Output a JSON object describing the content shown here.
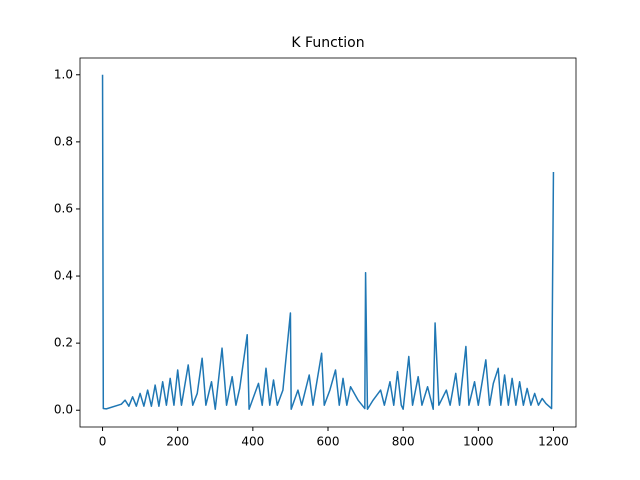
{
  "chart_data": {
    "type": "line",
    "title": "K Function",
    "x": [
      0,
      2,
      10,
      50,
      60,
      70,
      80,
      90,
      100,
      110,
      120,
      130,
      140,
      150,
      160,
      170,
      180,
      190,
      200,
      210,
      228,
      240,
      252,
      265,
      275,
      290,
      300,
      318,
      330,
      345,
      355,
      365,
      385,
      390,
      415,
      425,
      435,
      445,
      455,
      465,
      480,
      500,
      502,
      520,
      530,
      550,
      560,
      583,
      590,
      605,
      620,
      630,
      640,
      650,
      660,
      680,
      698,
      700,
      705,
      720,
      740,
      750,
      765,
      775,
      785,
      795,
      800,
      815,
      825,
      840,
      850,
      865,
      880,
      885,
      895,
      915,
      925,
      940,
      950,
      967,
      975,
      990,
      1000,
      1020,
      1030,
      1040,
      1053,
      1060,
      1070,
      1080,
      1090,
      1100,
      1110,
      1120,
      1130,
      1140,
      1150,
      1160,
      1170,
      1180,
      1195,
      1200
    ],
    "series": [
      {
        "color": "#1f77b4",
        "values": [
          1.0,
          0.005,
          0.004,
          0.018,
          0.03,
          0.012,
          0.04,
          0.012,
          0.05,
          0.012,
          0.06,
          0.012,
          0.075,
          0.012,
          0.085,
          0.015,
          0.095,
          0.015,
          0.12,
          0.015,
          0.135,
          0.015,
          0.05,
          0.155,
          0.015,
          0.085,
          0.003,
          0.185,
          0.015,
          0.1,
          0.015,
          0.065,
          0.225,
          0.003,
          0.08,
          0.015,
          0.125,
          0.015,
          0.09,
          0.015,
          0.06,
          0.29,
          0.003,
          0.06,
          0.015,
          0.105,
          0.015,
          0.17,
          0.015,
          0.06,
          0.12,
          0.015,
          0.095,
          0.015,
          0.07,
          0.03,
          0.005,
          0.41,
          0.003,
          0.03,
          0.06,
          0.015,
          0.085,
          0.015,
          0.115,
          0.015,
          0.003,
          0.16,
          0.015,
          0.1,
          0.015,
          0.07,
          0.003,
          0.26,
          0.015,
          0.06,
          0.015,
          0.11,
          0.015,
          0.19,
          0.015,
          0.085,
          0.015,
          0.15,
          0.015,
          0.08,
          0.125,
          0.015,
          0.105,
          0.015,
          0.095,
          0.015,
          0.085,
          0.015,
          0.065,
          0.015,
          0.05,
          0.015,
          0.035,
          0.02,
          0.005,
          0.71
        ]
      }
    ],
    "xlim": [
      -60,
      1260
    ],
    "xticks": [
      0,
      200,
      400,
      600,
      800,
      1000,
      1200
    ],
    "ylim": [
      -0.05,
      1.05
    ],
    "yticks": [
      {
        "value": 0,
        "label": "0.0"
      },
      {
        "value": 0.2,
        "label": "0.2"
      },
      {
        "value": 0.4,
        "label": "0.4"
      },
      {
        "value": 0.6,
        "label": "0.6"
      },
      {
        "value": 0.8,
        "label": "0.8"
      },
      {
        "value": 1.0,
        "label": "1.0"
      }
    ]
  }
}
